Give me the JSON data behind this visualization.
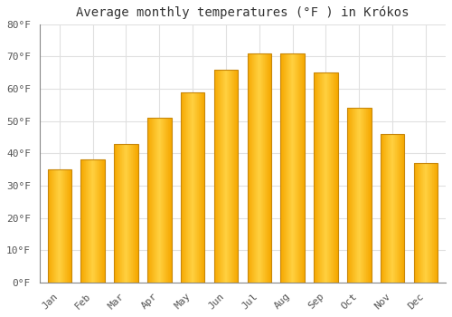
{
  "title": "Average monthly temperatures (°F ) in Krókos",
  "months": [
    "Jan",
    "Feb",
    "Mar",
    "Apr",
    "May",
    "Jun",
    "Jul",
    "Aug",
    "Sep",
    "Oct",
    "Nov",
    "Dec"
  ],
  "values": [
    35,
    38,
    43,
    51,
    59,
    66,
    71,
    71,
    65,
    54,
    46,
    37
  ],
  "bar_color_center": "#FFD040",
  "bar_color_edge": "#F5A800",
  "bar_border_color": "#C8870A",
  "background_color": "#FFFFFF",
  "grid_color": "#E0E0E0",
  "ylim": [
    0,
    80
  ],
  "yticks": [
    0,
    10,
    20,
    30,
    40,
    50,
    60,
    70,
    80
  ],
  "ytick_labels": [
    "0°F",
    "10°F",
    "20°F",
    "30°F",
    "40°F",
    "50°F",
    "60°F",
    "70°F",
    "80°F"
  ],
  "title_fontsize": 10,
  "tick_fontsize": 8,
  "font_family": "monospace",
  "axis_color": "#888888",
  "text_color": "#555555"
}
